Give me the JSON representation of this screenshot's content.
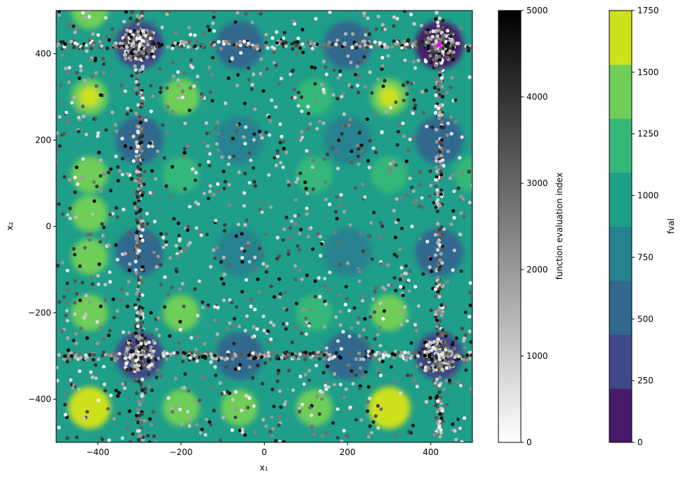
{
  "chart_data": {
    "type": "heatmap",
    "subtype": "filled-contour with overlaid scatter of function evaluations",
    "title": "",
    "xlabel": "x₁",
    "ylabel": "x₂",
    "xlim": [
      -500,
      500
    ],
    "ylim": [
      -500,
      500
    ],
    "xticks": [
      -400,
      -200,
      0,
      200,
      400
    ],
    "yticks": [
      -400,
      -200,
      0,
      200,
      400
    ],
    "xtick_labels": [
      "−400",
      "−200",
      "0",
      "200",
      "400"
    ],
    "ytick_labels": [
      "−400",
      "−200",
      "0",
      "200",
      "400"
    ],
    "grid": false,
    "contour": {
      "colormap": "viridis",
      "levels": [
        0,
        250,
        500,
        750,
        1000,
        1250,
        1500,
        1750
      ],
      "level_colors": [
        "#481a6c",
        "#3f4889",
        "#31688e",
        "#26828e",
        "#1f9e89",
        "#35b779",
        "#6ece58",
        "#cde11d"
      ]
    },
    "scatter": {
      "series_label": "function evaluation index",
      "color_range": [
        0,
        5000
      ],
      "colormap": "greys",
      "cluster_lines_x": [
        -300,
        420
      ],
      "cluster_lines_y": [
        420,
        -300
      ],
      "best_point": {
        "x": 420,
        "y": 420,
        "marker": "star",
        "color": "#ff00ff"
      }
    },
    "colorbars": [
      {
        "label": "function evaluation index",
        "min": 0,
        "max": 5000,
        "ticks": [
          "0",
          "1000",
          "2000",
          "3000",
          "4000",
          "5000"
        ],
        "colormap": "greys"
      },
      {
        "label": "fval",
        "min": 0,
        "max": 1750,
        "ticks": [
          "0",
          "250",
          "500",
          "750",
          "1000",
          "1250",
          "1500",
          "1750"
        ],
        "colormap": "viridis-discrete"
      }
    ]
  }
}
